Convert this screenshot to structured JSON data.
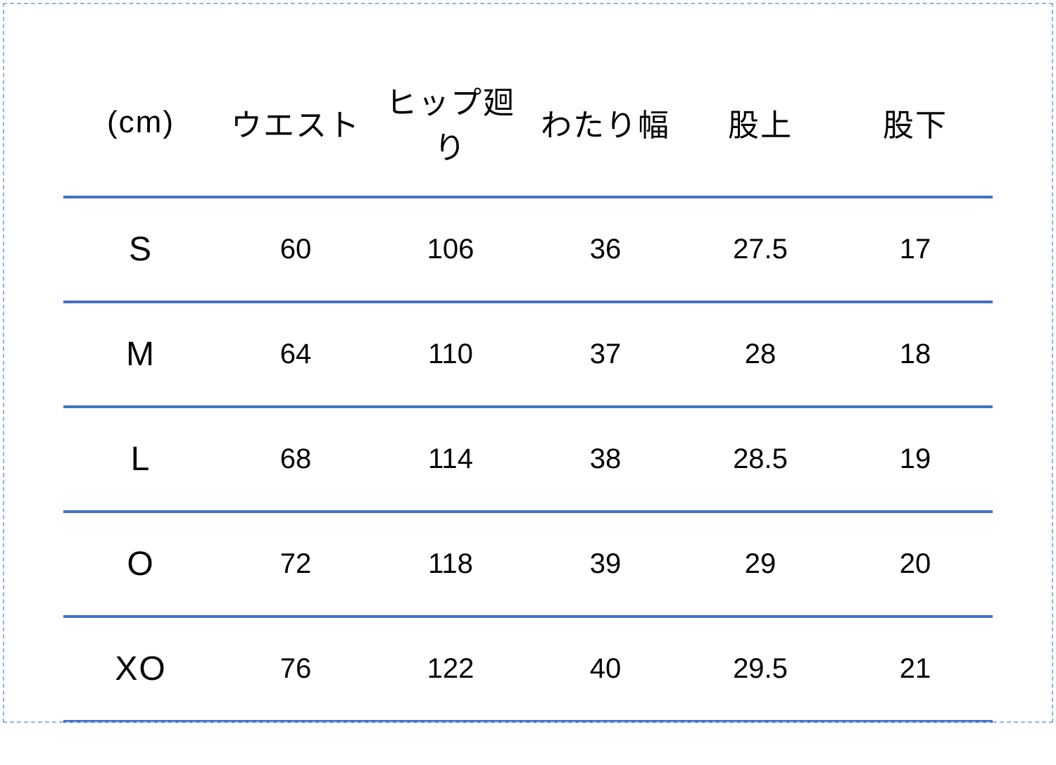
{
  "size_table": {
    "type": "table",
    "border_color": "#4472c4",
    "border_width": 4,
    "frame_border_color": "#8ab4e8",
    "background_color": "#ffffff",
    "text_color": "#000000",
    "header_fontsize": 44,
    "size_label_fontsize": 48,
    "cell_fontsize": 40,
    "columns": [
      "(cm)",
      "ウエスト",
      "ヒップ廻り",
      "わたり幅",
      "股上",
      "股下"
    ],
    "rows": [
      [
        "S",
        "60",
        "106",
        "36",
        "27.5",
        "17"
      ],
      [
        "M",
        "64",
        "110",
        "37",
        "28",
        "18"
      ],
      [
        "L",
        "68",
        "114",
        "38",
        "28.5",
        "19"
      ],
      [
        "O",
        "72",
        "118",
        "39",
        "29",
        "20"
      ],
      [
        "XO",
        "76",
        "122",
        "40",
        "29.5",
        "21"
      ]
    ]
  }
}
